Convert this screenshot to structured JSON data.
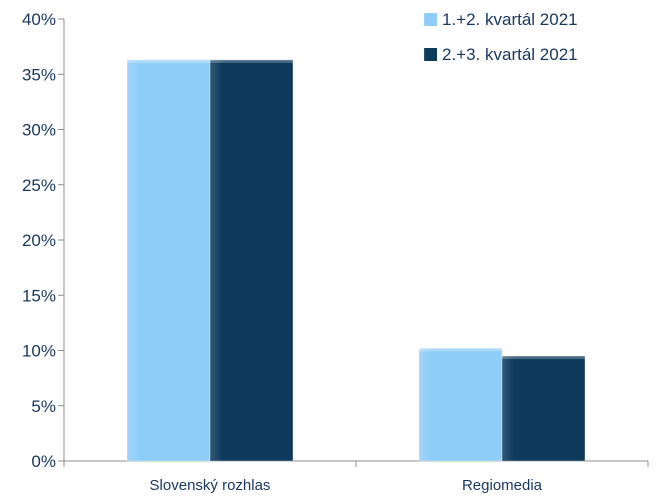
{
  "chart_data": {
    "type": "bar",
    "categories": [
      "Slovenský rozhlas",
      "Regiomedia"
    ],
    "series": [
      {
        "name": "1.+2. kvartál 2021",
        "values": [
          36.3,
          10.2
        ],
        "color": "#8fcdf9"
      },
      {
        "name": "2.+3. kvartál 2021",
        "values": [
          36.3,
          9.5
        ],
        "color": "#0e3a5c"
      }
    ],
    "ylim": [
      0,
      40
    ],
    "y_ticks": [
      0,
      5,
      10,
      15,
      20,
      25,
      30,
      35,
      40
    ],
    "y_tick_suffix": "%",
    "grid": false,
    "legend_position": "top-right",
    "axis_color": "#8c8c8c",
    "label_color": "#17375e"
  }
}
